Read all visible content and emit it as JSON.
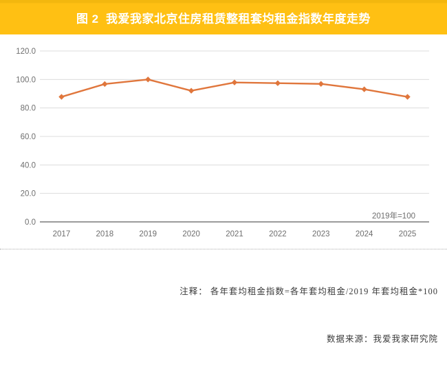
{
  "header": {
    "title": "图 2  我爱我家北京住房租赁整租套均租金指数年度走势",
    "background_color": "#FFC013",
    "text_color": "#FFFFFF"
  },
  "chart_data": {
    "type": "line",
    "title": "我爱我家北京住房租赁整租套均租金指数年度走势",
    "categories": [
      "2017",
      "2018",
      "2019",
      "2020",
      "2021",
      "2022",
      "2023",
      "2024",
      "2025"
    ],
    "values": [
      87.8,
      96.8,
      100.0,
      92.1,
      97.9,
      97.4,
      96.9,
      93.1,
      87.8
    ],
    "ylim": [
      0,
      120
    ],
    "ytick_step": 20,
    "ytick_labels": [
      "0.0",
      "20.0",
      "40.0",
      "60.0",
      "80.0",
      "100.0",
      "120.0"
    ],
    "annotation": "2019年=100",
    "xlabel": "",
    "ylabel": "",
    "grid": "horizontal",
    "legend": "none",
    "line_color": "#E0763C",
    "marker": "diamond",
    "gridline_color": "#DCDCDC",
    "axis_line_color": "#9B9B9B",
    "tick_label_color": "#6E6E6E"
  },
  "footer": {
    "note": "注释： 各年套均租金指数=各年套均租金/2019 年套均租金*100",
    "source": "数据来源：我爱我家研究院"
  }
}
